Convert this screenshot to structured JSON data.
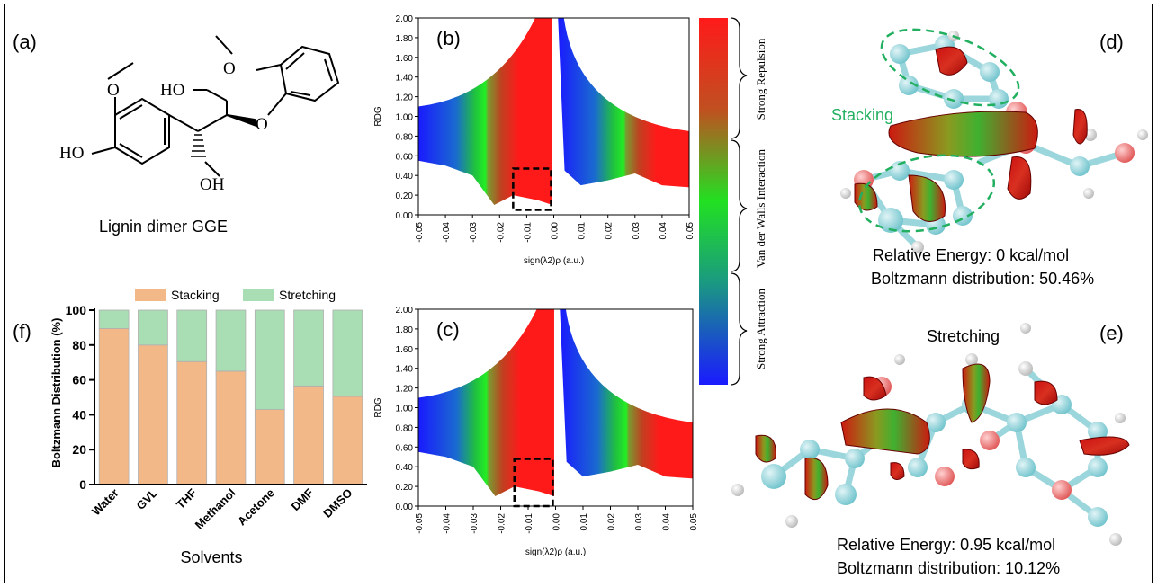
{
  "panel_labels": {
    "a": "(a)",
    "b": "(b)",
    "c": "(c)",
    "d": "(d)",
    "e": "(e)",
    "f": "(f)"
  },
  "molecule": {
    "caption": "Lignin dimer GGE",
    "atoms": {
      "ho_top": "HO",
      "ho_left": "HO",
      "oh": "OH",
      "o_ether": "O",
      "o_ome_left": "O",
      "o_ome_right": "O"
    }
  },
  "colorbar": {
    "labels": [
      "Strong Repulsion",
      "Van der Walls Interaction",
      "Strong Attraction"
    ],
    "colors": [
      "#ff1a1a",
      "#22e022",
      "#1a1aff"
    ]
  },
  "panel_d": {
    "title": "Stacking",
    "energy": "Relative Energy: 0 kcal/mol",
    "boltzmann": "Boltzmann distribution: 50.46%"
  },
  "panel_e": {
    "title": "Stretching",
    "energy": "Relative Energy: 0.95 kcal/mol",
    "boltzmann": "Boltzmann distribution: 10.12%"
  },
  "chart_data": [
    {
      "type": "scatter",
      "panel": "(b)",
      "xlabel": "sign(λ2)ρ (a.u.)",
      "ylabel": "RDG",
      "xlim": [
        -0.05,
        0.05
      ],
      "ylim": [
        0,
        2.0
      ],
      "xticks": [
        "-0.05",
        "-0.04",
        "-0.03",
        "-0.02",
        "-0.01",
        "0.00",
        "0.01",
        "0.02",
        "0.03",
        "0.04",
        "0.05"
      ],
      "yticks": [
        "0.00",
        "0.20",
        "0.40",
        "0.60",
        "0.80",
        "1.00",
        "1.20",
        "1.40",
        "1.60",
        "1.80",
        "2.00"
      ],
      "highlight_box": {
        "x": [
          -0.015,
          -0.001
        ],
        "y": [
          0.05,
          0.47
        ]
      }
    },
    {
      "type": "scatter",
      "panel": "(c)",
      "xlabel": "sign(λ2)ρ (a.u.)",
      "ylabel": "RDG",
      "xlim": [
        -0.05,
        0.05
      ],
      "ylim": [
        0,
        2.0
      ],
      "xticks": [
        "-0.05",
        "-0.04",
        "-0.03",
        "-0.02",
        "-0.01",
        "0.00",
        "0.01",
        "0.02",
        "0.03",
        "0.04",
        "0.05"
      ],
      "yticks": [
        "0.00",
        "0.20",
        "0.40",
        "0.60",
        "0.80",
        "1.00",
        "1.20",
        "1.40",
        "1.60",
        "1.80",
        "2.00"
      ],
      "highlight_box": {
        "x": [
          -0.015,
          -0.001
        ],
        "y": [
          0.0,
          0.48
        ]
      }
    },
    {
      "type": "bar",
      "panel": "(f)",
      "stacked": true,
      "categories": [
        "Water",
        "GVL",
        "THF",
        "Methanol",
        "Acetone",
        "DMF",
        "DMSO"
      ],
      "series": [
        {
          "name": "Stacking",
          "values": [
            89.5,
            80,
            70.5,
            65,
            43,
            56.5,
            50.5
          ],
          "color": "#f2b887"
        },
        {
          "name": "Stretching",
          "values": [
            10.5,
            20,
            29.5,
            35,
            57,
            43.5,
            49.5
          ],
          "color": "#a9ddb4"
        }
      ],
      "xlabel": "Solvents",
      "ylabel": "Boltzmann Distribution (%)",
      "ylim": [
        0,
        100
      ],
      "yticks": [
        "0",
        "20",
        "40",
        "60",
        "80",
        "100"
      ],
      "legend": "top"
    }
  ]
}
